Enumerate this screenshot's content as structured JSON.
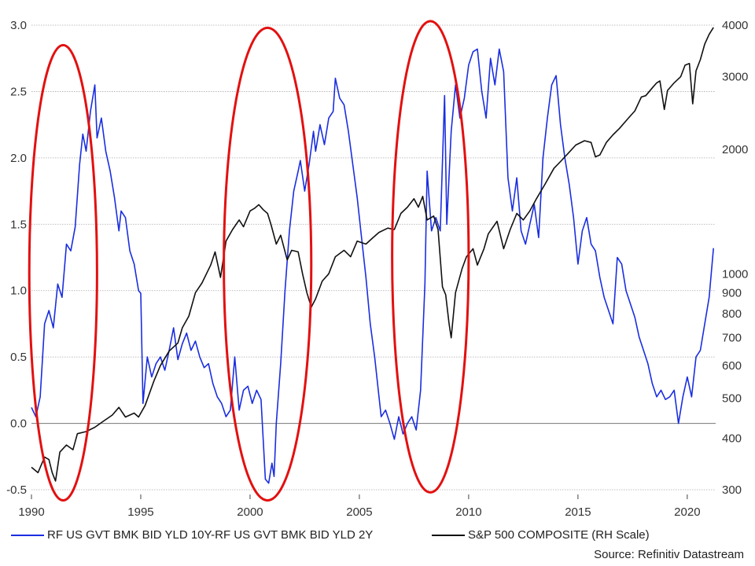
{
  "chart_data": {
    "type": "line",
    "title": "",
    "x_ticks": [
      "1990",
      "1995",
      "2000",
      "2005",
      "2010",
      "2015",
      "2020"
    ],
    "xlim": [
      1990,
      2021.3
    ],
    "y_left": {
      "label": "",
      "ylim": [
        -0.5,
        3.0
      ],
      "ticks": [
        "3.0",
        "2.5",
        "2.0",
        "1.5",
        "1.0",
        "0.5",
        "0.0",
        "-0.5"
      ]
    },
    "y_right": {
      "label": "",
      "scale": "log",
      "ylim": [
        300,
        4000
      ],
      "ticks": [
        "4000",
        "3000",
        "2000",
        "1000",
        "900",
        "800",
        "700",
        "600",
        "500",
        "400",
        "300"
      ]
    },
    "series": [
      {
        "name": "RF US GVT BMK BID YLD 10Y-RF US GVT BMK BID YLD 2Y",
        "axis": "left",
        "color": "#1a2ee0",
        "points": [
          [
            1990.0,
            0.12
          ],
          [
            1990.2,
            0.05
          ],
          [
            1990.4,
            0.2
          ],
          [
            1990.6,
            0.75
          ],
          [
            1990.8,
            0.85
          ],
          [
            1991.0,
            0.72
          ],
          [
            1991.2,
            1.05
          ],
          [
            1991.4,
            0.95
          ],
          [
            1991.6,
            1.35
          ],
          [
            1991.8,
            1.3
          ],
          [
            1992.0,
            1.48
          ],
          [
            1992.2,
            1.95
          ],
          [
            1992.35,
            2.18
          ],
          [
            1992.5,
            2.05
          ],
          [
            1992.7,
            2.35
          ],
          [
            1992.9,
            2.55
          ],
          [
            1993.0,
            2.15
          ],
          [
            1993.2,
            2.3
          ],
          [
            1993.4,
            2.05
          ],
          [
            1993.6,
            1.9
          ],
          [
            1993.8,
            1.7
          ],
          [
            1994.0,
            1.45
          ],
          [
            1994.1,
            1.6
          ],
          [
            1994.3,
            1.55
          ],
          [
            1994.5,
            1.3
          ],
          [
            1994.7,
            1.2
          ],
          [
            1994.9,
            1.0
          ],
          [
            1995.0,
            0.98
          ],
          [
            1995.1,
            0.15
          ],
          [
            1995.3,
            0.5
          ],
          [
            1995.5,
            0.35
          ],
          [
            1995.7,
            0.45
          ],
          [
            1995.9,
            0.5
          ],
          [
            1996.1,
            0.4
          ],
          [
            1996.3,
            0.55
          ],
          [
            1996.5,
            0.72
          ],
          [
            1996.7,
            0.48
          ],
          [
            1996.9,
            0.6
          ],
          [
            1997.1,
            0.68
          ],
          [
            1997.3,
            0.55
          ],
          [
            1997.5,
            0.62
          ],
          [
            1997.7,
            0.5
          ],
          [
            1997.9,
            0.42
          ],
          [
            1998.1,
            0.45
          ],
          [
            1998.3,
            0.3
          ],
          [
            1998.5,
            0.2
          ],
          [
            1998.7,
            0.15
          ],
          [
            1998.9,
            0.05
          ],
          [
            1999.1,
            0.1
          ],
          [
            1999.3,
            0.5
          ],
          [
            1999.5,
            0.1
          ],
          [
            1999.7,
            0.25
          ],
          [
            1999.9,
            0.28
          ],
          [
            2000.1,
            0.15
          ],
          [
            2000.3,
            0.25
          ],
          [
            2000.5,
            0.18
          ],
          [
            2000.7,
            -0.42
          ],
          [
            2000.85,
            -0.45
          ],
          [
            2001.0,
            -0.3
          ],
          [
            2001.1,
            -0.4
          ],
          [
            2001.2,
            0.0
          ],
          [
            2001.4,
            0.45
          ],
          [
            2001.6,
            1.0
          ],
          [
            2001.8,
            1.45
          ],
          [
            2002.0,
            1.75
          ],
          [
            2002.2,
            1.9
          ],
          [
            2002.3,
            1.98
          ],
          [
            2002.5,
            1.75
          ],
          [
            2002.7,
            1.95
          ],
          [
            2002.9,
            2.2
          ],
          [
            2003.0,
            2.05
          ],
          [
            2003.2,
            2.25
          ],
          [
            2003.4,
            2.1
          ],
          [
            2003.6,
            2.3
          ],
          [
            2003.8,
            2.35
          ],
          [
            2003.9,
            2.6
          ],
          [
            2004.1,
            2.45
          ],
          [
            2004.3,
            2.4
          ],
          [
            2004.5,
            2.2
          ],
          [
            2004.7,
            1.95
          ],
          [
            2004.9,
            1.7
          ],
          [
            2005.1,
            1.4
          ],
          [
            2005.3,
            1.1
          ],
          [
            2005.5,
            0.75
          ],
          [
            2005.7,
            0.5
          ],
          [
            2005.9,
            0.2
          ],
          [
            2006.0,
            0.05
          ],
          [
            2006.2,
            0.1
          ],
          [
            2006.4,
            0.0
          ],
          [
            2006.6,
            -0.12
          ],
          [
            2006.8,
            0.05
          ],
          [
            2007.0,
            -0.08
          ],
          [
            2007.2,
            0.0
          ],
          [
            2007.4,
            0.05
          ],
          [
            2007.6,
            -0.05
          ],
          [
            2007.8,
            0.25
          ],
          [
            2008.0,
            1.05
          ],
          [
            2008.1,
            1.9
          ],
          [
            2008.3,
            1.45
          ],
          [
            2008.5,
            1.55
          ],
          [
            2008.7,
            1.45
          ],
          [
            2008.9,
            2.47
          ],
          [
            2009.0,
            1.5
          ],
          [
            2009.2,
            2.2
          ],
          [
            2009.4,
            2.55
          ],
          [
            2009.6,
            2.3
          ],
          [
            2009.8,
            2.45
          ],
          [
            2010.0,
            2.7
          ],
          [
            2010.2,
            2.8
          ],
          [
            2010.4,
            2.82
          ],
          [
            2010.6,
            2.5
          ],
          [
            2010.8,
            2.3
          ],
          [
            2011.0,
            2.75
          ],
          [
            2011.2,
            2.55
          ],
          [
            2011.4,
            2.82
          ],
          [
            2011.6,
            2.65
          ],
          [
            2011.8,
            1.85
          ],
          [
            2012.0,
            1.6
          ],
          [
            2012.2,
            1.85
          ],
          [
            2012.4,
            1.45
          ],
          [
            2012.6,
            1.35
          ],
          [
            2012.8,
            1.5
          ],
          [
            2013.0,
            1.65
          ],
          [
            2013.2,
            1.4
          ],
          [
            2013.4,
            2.0
          ],
          [
            2013.6,
            2.3
          ],
          [
            2013.8,
            2.55
          ],
          [
            2014.0,
            2.62
          ],
          [
            2014.2,
            2.25
          ],
          [
            2014.4,
            2.0
          ],
          [
            2014.6,
            1.8
          ],
          [
            2014.8,
            1.55
          ],
          [
            2015.0,
            1.2
          ],
          [
            2015.2,
            1.45
          ],
          [
            2015.4,
            1.55
          ],
          [
            2015.6,
            1.35
          ],
          [
            2015.8,
            1.3
          ],
          [
            2016.0,
            1.1
          ],
          [
            2016.2,
            0.95
          ],
          [
            2016.4,
            0.85
          ],
          [
            2016.6,
            0.75
          ],
          [
            2016.8,
            1.25
          ],
          [
            2017.0,
            1.2
          ],
          [
            2017.2,
            1.0
          ],
          [
            2017.4,
            0.9
          ],
          [
            2017.6,
            0.8
          ],
          [
            2017.8,
            0.65
          ],
          [
            2018.0,
            0.55
          ],
          [
            2018.2,
            0.45
          ],
          [
            2018.4,
            0.3
          ],
          [
            2018.6,
            0.2
          ],
          [
            2018.8,
            0.25
          ],
          [
            2019.0,
            0.18
          ],
          [
            2019.2,
            0.2
          ],
          [
            2019.4,
            0.25
          ],
          [
            2019.6,
            0.0
          ],
          [
            2019.8,
            0.2
          ],
          [
            2020.0,
            0.35
          ],
          [
            2020.2,
            0.2
          ],
          [
            2020.4,
            0.5
          ],
          [
            2020.6,
            0.55
          ],
          [
            2020.8,
            0.75
          ],
          [
            2021.0,
            0.95
          ],
          [
            2021.2,
            1.32
          ]
        ]
      },
      {
        "name": "S&P 500 COMPOSITE (RH Scale)",
        "axis": "right",
        "color": "#111111",
        "points": [
          [
            1990.0,
            340
          ],
          [
            1990.3,
            330
          ],
          [
            1990.6,
            360
          ],
          [
            1990.8,
            355
          ],
          [
            1990.95,
            330
          ],
          [
            1991.1,
            315
          ],
          [
            1991.3,
            370
          ],
          [
            1991.6,
            385
          ],
          [
            1991.9,
            375
          ],
          [
            1992.1,
            410
          ],
          [
            1992.5,
            415
          ],
          [
            1992.9,
            425
          ],
          [
            1993.3,
            440
          ],
          [
            1993.7,
            455
          ],
          [
            1994.0,
            475
          ],
          [
            1994.3,
            450
          ],
          [
            1994.7,
            460
          ],
          [
            1994.9,
            450
          ],
          [
            1995.2,
            480
          ],
          [
            1995.6,
            550
          ],
          [
            1995.9,
            600
          ],
          [
            1996.3,
            650
          ],
          [
            1996.7,
            680
          ],
          [
            1996.9,
            740
          ],
          [
            1997.2,
            790
          ],
          [
            1997.5,
            900
          ],
          [
            1997.8,
            950
          ],
          [
            1998.2,
            1050
          ],
          [
            1998.4,
            1130
          ],
          [
            1998.65,
            980
          ],
          [
            1998.9,
            1200
          ],
          [
            1999.2,
            1280
          ],
          [
            1999.5,
            1350
          ],
          [
            1999.7,
            1300
          ],
          [
            2000.0,
            1420
          ],
          [
            2000.2,
            1440
          ],
          [
            2000.4,
            1470
          ],
          [
            2000.6,
            1430
          ],
          [
            2000.8,
            1400
          ],
          [
            2000.95,
            1320
          ],
          [
            2001.2,
            1180
          ],
          [
            2001.4,
            1240
          ],
          [
            2001.7,
            1080
          ],
          [
            2001.9,
            1140
          ],
          [
            2002.2,
            1130
          ],
          [
            2002.4,
            1000
          ],
          [
            2002.6,
            900
          ],
          [
            2002.8,
            830
          ],
          [
            2003.0,
            870
          ],
          [
            2003.3,
            960
          ],
          [
            2003.6,
            1000
          ],
          [
            2003.9,
            1100
          ],
          [
            2004.3,
            1140
          ],
          [
            2004.6,
            1100
          ],
          [
            2004.9,
            1200
          ],
          [
            2005.3,
            1180
          ],
          [
            2005.6,
            1220
          ],
          [
            2005.9,
            1260
          ],
          [
            2006.3,
            1290
          ],
          [
            2006.6,
            1280
          ],
          [
            2006.9,
            1400
          ],
          [
            2007.2,
            1450
          ],
          [
            2007.5,
            1520
          ],
          [
            2007.7,
            1450
          ],
          [
            2007.9,
            1540
          ],
          [
            2008.1,
            1350
          ],
          [
            2008.4,
            1380
          ],
          [
            2008.6,
            1280
          ],
          [
            2008.8,
            930
          ],
          [
            2008.95,
            890
          ],
          [
            2009.1,
            760
          ],
          [
            2009.2,
            700
          ],
          [
            2009.4,
            900
          ],
          [
            2009.7,
            1030
          ],
          [
            2009.9,
            1100
          ],
          [
            2010.2,
            1150
          ],
          [
            2010.4,
            1050
          ],
          [
            2010.7,
            1150
          ],
          [
            2010.9,
            1250
          ],
          [
            2011.3,
            1340
          ],
          [
            2011.6,
            1150
          ],
          [
            2011.9,
            1280
          ],
          [
            2012.2,
            1400
          ],
          [
            2012.5,
            1350
          ],
          [
            2012.8,
            1420
          ],
          [
            2013.1,
            1520
          ],
          [
            2013.5,
            1650
          ],
          [
            2013.9,
            1800
          ],
          [
            2014.2,
            1870
          ],
          [
            2014.6,
            1970
          ],
          [
            2014.9,
            2050
          ],
          [
            2015.3,
            2100
          ],
          [
            2015.6,
            2080
          ],
          [
            2015.8,
            1920
          ],
          [
            2016.0,
            1940
          ],
          [
            2016.3,
            2080
          ],
          [
            2016.6,
            2170
          ],
          [
            2016.9,
            2250
          ],
          [
            2017.3,
            2380
          ],
          [
            2017.6,
            2480
          ],
          [
            2017.9,
            2680
          ],
          [
            2018.1,
            2700
          ],
          [
            2018.4,
            2820
          ],
          [
            2018.6,
            2900
          ],
          [
            2018.75,
            2930
          ],
          [
            2018.95,
            2500
          ],
          [
            2019.1,
            2780
          ],
          [
            2019.4,
            2900
          ],
          [
            2019.7,
            3000
          ],
          [
            2019.9,
            3200
          ],
          [
            2020.1,
            3230
          ],
          [
            2020.25,
            2580
          ],
          [
            2020.4,
            3100
          ],
          [
            2020.6,
            3300
          ],
          [
            2020.8,
            3600
          ],
          [
            2021.0,
            3800
          ],
          [
            2021.2,
            3950
          ]
        ]
      }
    ],
    "annotations": [
      {
        "shape": "ellipse",
        "color": "#e31010",
        "x_range": [
          1989.9,
          1993.0
        ],
        "y_range": [
          -0.58,
          2.85
        ]
      },
      {
        "shape": "ellipse",
        "color": "#e31010",
        "x_range": [
          1998.8,
          2002.8
        ],
        "y_range": [
          -0.58,
          2.98
        ]
      },
      {
        "shape": "ellipse",
        "color": "#e31010",
        "x_range": [
          2006.5,
          2010.0
        ],
        "y_range": [
          -0.52,
          3.03
        ]
      }
    ],
    "grid": true,
    "legend_position": "bottom"
  },
  "source": "Source: Refinitiv Datastream"
}
